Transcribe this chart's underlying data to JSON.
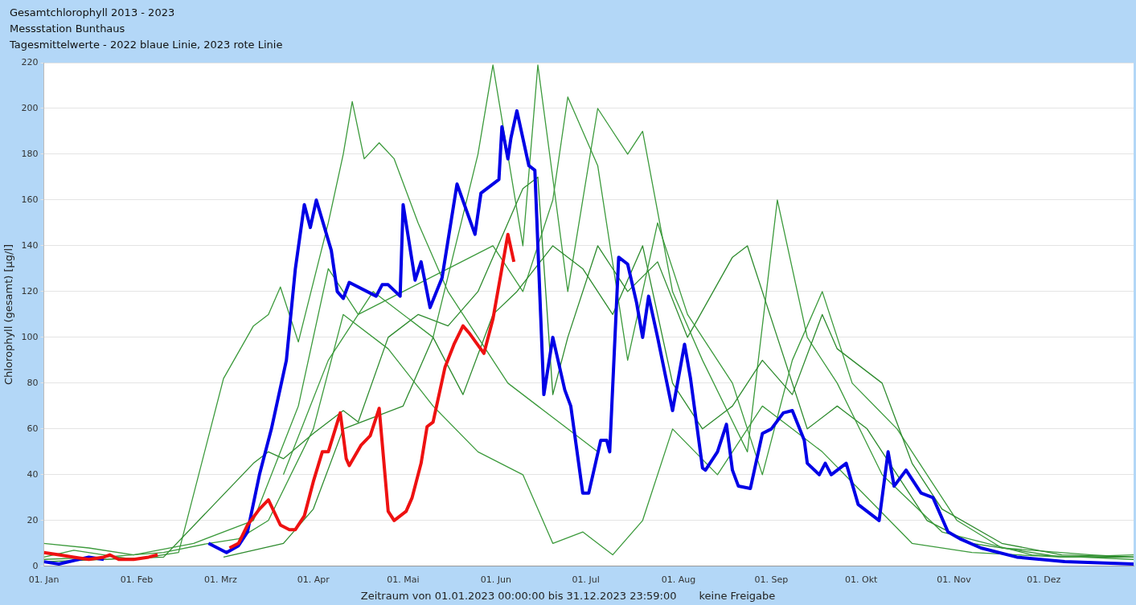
{
  "chart_data": {
    "type": "line",
    "title": "Gesamtchlorophyll 2013 - 2023",
    "subtitle": "Messstation Bunthaus",
    "annotations": [
      "Tagesmittelwerte -  2022 blaue Linie, 2023 rote Linie",
      "keine Freigabe"
    ],
    "xlabel": "Zeitraum von 01.01.2023 00:00:00 bis 31.12.2023 23:59:00",
    "ylabel": "Chlorophyll (gesamt) [µg/l]",
    "xlim": [
      "--01-01",
      "--12-31"
    ],
    "xticks": [
      {
        "value": "--01-01",
        "label": "01. Jan"
      },
      {
        "value": "--02-01",
        "label": "01. Feb"
      },
      {
        "value": "--03-01",
        "label": "01. Mrz"
      },
      {
        "value": "--04-01",
        "label": "01. Apr"
      },
      {
        "value": "--05-01",
        "label": "01. Mai"
      },
      {
        "value": "--06-01",
        "label": "01. Jun"
      },
      {
        "value": "--07-01",
        "label": "01. Jul"
      },
      {
        "value": "--08-01",
        "label": "01. Aug"
      },
      {
        "value": "--09-01",
        "label": "01. Sep"
      },
      {
        "value": "--10-01",
        "label": "01. Okt"
      },
      {
        "value": "--11-01",
        "label": "01. Nov"
      },
      {
        "value": "--12-01",
        "label": "01. Dez"
      }
    ],
    "ylim": [
      0,
      220
    ],
    "yticks": [
      0,
      20,
      40,
      60,
      80,
      100,
      120,
      140,
      160,
      180,
      200,
      220
    ],
    "grid": "y",
    "legend": false,
    "series": [
      {
        "color": "#3c9a3c",
        "x": [
          "--01-01",
          "--01-11",
          "--01-21",
          "--01-31",
          "--02-15",
          "--03-02",
          "--03-12",
          "--03-17",
          "--03-21",
          "--03-27",
          "--04-06",
          "--04-11",
          "--04-14",
          "--04-18",
          "--04-23",
          "--04-28",
          "--05-06",
          "--05-16",
          "--05-26",
          "--06-05",
          "--06-15",
          "--06-25",
          "--07-05"
        ],
        "values": [
          4,
          7,
          5,
          3,
          6,
          82,
          105,
          110,
          122,
          98,
          150,
          180,
          203,
          178,
          185,
          178,
          150,
          120,
          100,
          80,
          70,
          60,
          50
        ]
      },
      {
        "color": "#2e8b2e",
        "x": [
          "--01-01",
          "--01-21",
          "--02-10",
          "--03-12",
          "--03-17",
          "--03-22",
          "--04-01",
          "--04-11",
          "--04-16",
          "--04-26",
          "--05-06",
          "--05-16",
          "--05-26",
          "--06-05",
          "--06-10",
          "--06-15",
          "--06-20",
          "--06-25",
          "--07-05",
          "--07-15",
          "--07-25",
          "--08-04",
          "--08-19",
          "--08-24",
          "--09-03",
          "--09-13",
          "--09-23",
          "--10-03",
          "--10-13",
          "--10-23",
          "--11-07",
          "--12-07",
          "--12-31"
        ],
        "values": [
          2,
          3,
          4,
          45,
          50,
          47,
          58,
          68,
          63,
          100,
          110,
          105,
          120,
          150,
          165,
          170,
          75,
          100,
          140,
          120,
          133,
          100,
          135,
          140,
          100,
          60,
          70,
          60,
          40,
          20,
          10,
          4,
          4
        ]
      },
      {
        "color": "#3c9a3c",
        "x": [
          "--03-22",
          "--04-06",
          "--04-21",
          "--05-11",
          "--05-26",
          "--05-31",
          "--06-10",
          "--06-15",
          "--06-25",
          "--07-05",
          "--07-15",
          "--07-20",
          "--07-30",
          "--08-09",
          "--08-24",
          "--09-03",
          "--09-13",
          "--09-23",
          "--10-08",
          "--10-28",
          "--11-27",
          "--12-31"
        ],
        "values": [
          40,
          90,
          120,
          100,
          180,
          219,
          140,
          219,
          120,
          200,
          180,
          190,
          120,
          90,
          50,
          160,
          100,
          80,
          40,
          15,
          5,
          3
        ]
      },
      {
        "color": "#3c9a3c",
        "x": [
          "--01-01",
          "--01-21",
          "--02-10",
          "--02-25",
          "--03-07",
          "--03-17",
          "--04-01",
          "--04-11",
          "--04-26",
          "--05-11",
          "--05-26",
          "--06-10",
          "--06-20",
          "--06-30",
          "--07-10",
          "--07-20",
          "--07-30",
          "--08-14",
          "--08-29",
          "--09-08",
          "--09-18",
          "--10-03",
          "--10-18",
          "--11-07",
          "--12-07",
          "--12-31"
        ],
        "values": [
          3,
          4,
          6,
          10,
          12,
          20,
          60,
          110,
          95,
          70,
          50,
          40,
          10,
          15,
          5,
          20,
          60,
          40,
          70,
          60,
          50,
          30,
          10,
          6,
          4,
          5
        ]
      },
      {
        "color": "#3c9a3c",
        "x": [
          "--01-01",
          "--01-16",
          "--01-31",
          "--02-20",
          "--03-12",
          "--03-27",
          "--04-06",
          "--04-16",
          "--05-01",
          "--05-16",
          "--05-31",
          "--06-10",
          "--06-20",
          "--06-25",
          "--07-05",
          "--07-15",
          "--07-25",
          "--08-04",
          "--08-19",
          "--08-29",
          "--09-08",
          "--09-18",
          "--09-28",
          "--10-13",
          "--10-23",
          "--11-02",
          "--11-17",
          "--12-17",
          "--12-31"
        ],
        "values": [
          10,
          8,
          5,
          10,
          20,
          70,
          130,
          110,
          120,
          130,
          140,
          120,
          160,
          205,
          175,
          90,
          150,
          110,
          80,
          40,
          90,
          120,
          80,
          60,
          40,
          20,
          8,
          5,
          4
        ]
      },
      {
        "color": "#2e8b2e",
        "x": [
          "--03-02",
          "--03-22",
          "--04-01",
          "--04-11",
          "--04-21",
          "--05-01",
          "--05-11",
          "--05-21",
          "--05-31",
          "--06-08",
          "--06-20",
          "--06-30",
          "--07-10",
          "--07-20",
          "--07-30",
          "--08-09",
          "--08-19",
          "--08-29",
          "--09-08",
          "--09-18",
          "--09-23",
          "--10-08",
          "--10-18",
          "--10-28",
          "--11-17",
          "--12-07",
          "--12-31"
        ],
        "values": [
          4,
          10,
          25,
          60,
          65,
          70,
          100,
          75,
          110,
          120,
          140,
          130,
          110,
          140,
          80,
          60,
          70,
          90,
          75,
          110,
          95,
          80,
          45,
          25,
          10,
          5,
          4
        ]
      },
      {
        "color": "#0000e6",
        "x": [
          "--01-01",
          "--01-06",
          "--01-16",
          "--01-21",
          "--01-22",
          "--02-25",
          "--03-03",
          "--03-07",
          "--03-10",
          "--03-14",
          "--03-18",
          "--03-23",
          "--03-26",
          "--03-29",
          "--03-31",
          "--04-02",
          "--04-07",
          "--04-09",
          "--04-11",
          "--04-13",
          "--04-22",
          "--04-24",
          "--04-26",
          "--04-30",
          "--05-01",
          "--05-05",
          "--05-07",
          "--05-10",
          "--05-14",
          "--05-19",
          "--05-25",
          "--05-27",
          "--06-02",
          "--06-03",
          "--06-05",
          "--06-06",
          "--06-08",
          "--06-12",
          "--06-14",
          "--06-17",
          "--06-20",
          "--06-24",
          "--06-26",
          "--06-30",
          "--07-02",
          "--07-06",
          "--07-08",
          "--07-09",
          "--07-12",
          "--07-15",
          "--07-18",
          "--07-20",
          "--07-22",
          "--07-25",
          "--07-30",
          "--08-03",
          "--08-05",
          "--08-09",
          "--08-10",
          "--08-14",
          "--08-17",
          "--08-19",
          "--08-21",
          "--08-25",
          "--08-29",
          "--09-01",
          "--09-05",
          "--09-08",
          "--09-12",
          "--09-13",
          "--09-17",
          "--09-19",
          "--09-21",
          "--09-26",
          "--09-30",
          "--10-02",
          "--10-07",
          "--10-10",
          "--10-12",
          "--10-16",
          "--10-21",
          "--10-25",
          "--10-30",
          "--11-03",
          "--11-10",
          "--11-22",
          "--12-08",
          "--12-31"
        ],
        "values": [
          2,
          1,
          4,
          3,
          null,
          10,
          6,
          9,
          15,
          40,
          60,
          90,
          130,
          158,
          148,
          160,
          138,
          120,
          117,
          124,
          118,
          123,
          123,
          118,
          158,
          125,
          133,
          113,
          126,
          167,
          145,
          163,
          169,
          192,
          178,
          187,
          199,
          175,
          173,
          75,
          100,
          77,
          70,
          32,
          32,
          55,
          55,
          50,
          135,
          132,
          115,
          100,
          118,
          100,
          68,
          97,
          82,
          43,
          42,
          50,
          62,
          42,
          35,
          34,
          58,
          60,
          67,
          68,
          55,
          45,
          40,
          45,
          40,
          45,
          27,
          25,
          20,
          50,
          35,
          42,
          32,
          30,
          15,
          12,
          8,
          4,
          2,
          1
        ]
      },
      {
        "color": "#ee1111",
        "x": [
          "--01-01",
          "--01-06",
          "--01-11",
          "--01-16",
          "--01-21",
          "--01-23",
          "--01-26",
          "--01-31",
          "--02-05",
          "--02-08",
          "--02-20",
          "--03-04",
          "--03-07",
          "--03-10",
          "--03-14",
          "--03-17",
          "--03-21",
          "--03-24",
          "--03-26",
          "--03-29",
          "--04-01",
          "--04-04",
          "--04-06",
          "--04-10",
          "--04-12",
          "--04-13",
          "--04-17",
          "--04-20",
          "--04-23",
          "--04-26",
          "--04-28",
          "--05-02",
          "--05-04",
          "--05-07",
          "--05-09",
          "--05-11",
          "--05-15",
          "--05-18",
          "--05-21",
          "--05-23",
          "--05-28",
          "--05-31",
          "--06-05",
          "--06-07"
        ],
        "values": [
          6,
          5,
          4,
          3,
          4,
          5,
          3,
          3,
          4,
          5,
          null,
          8,
          10,
          18,
          25,
          29,
          18,
          16,
          16,
          22,
          37,
          50,
          50,
          67,
          47,
          44,
          53,
          57,
          69,
          24,
          20,
          24,
          30,
          45,
          61,
          63,
          87,
          97,
          105,
          102,
          93,
          108,
          145,
          133
        ]
      }
    ]
  }
}
